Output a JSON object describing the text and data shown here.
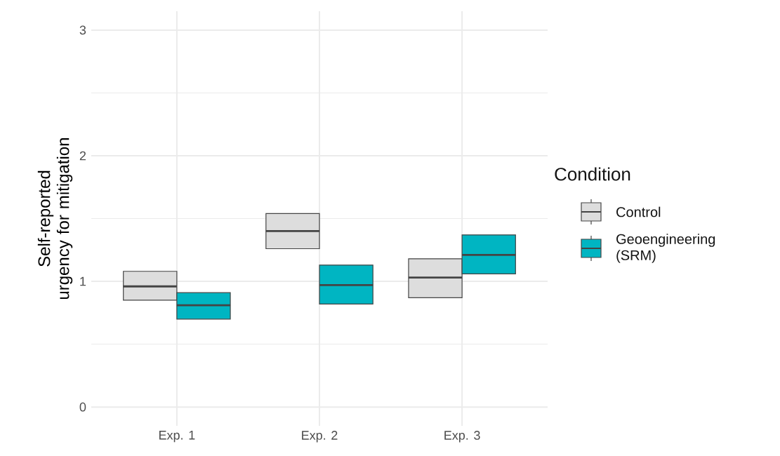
{
  "chart_data": {
    "type": "box",
    "ylabel": "Self-reported urgency for mitigation",
    "legend_title": "Condition",
    "legend": "right",
    "grid": true,
    "categories": [
      "Exp. 1",
      "Exp. 2",
      "Exp. 3"
    ],
    "ylim": [
      -0.15,
      3.15
    ],
    "yticks": [
      0,
      1,
      2,
      3
    ],
    "series": [
      {
        "name": "Control",
        "color": "#dddddd",
        "boxes": [
          {
            "q1": 0.85,
            "median": 0.96,
            "q3": 1.08
          },
          {
            "q1": 1.26,
            "median": 1.4,
            "q3": 1.54
          },
          {
            "q1": 0.87,
            "median": 1.03,
            "q3": 1.18
          }
        ]
      },
      {
        "name": "Geoengineering (SRM)",
        "color": "#00b5c2",
        "boxes": [
          {
            "q1": 0.7,
            "median": 0.81,
            "q3": 0.91
          },
          {
            "q1": 0.82,
            "median": 0.97,
            "q3": 1.13
          },
          {
            "q1": 1.06,
            "median": 1.21,
            "q3": 1.37
          }
        ]
      }
    ]
  }
}
